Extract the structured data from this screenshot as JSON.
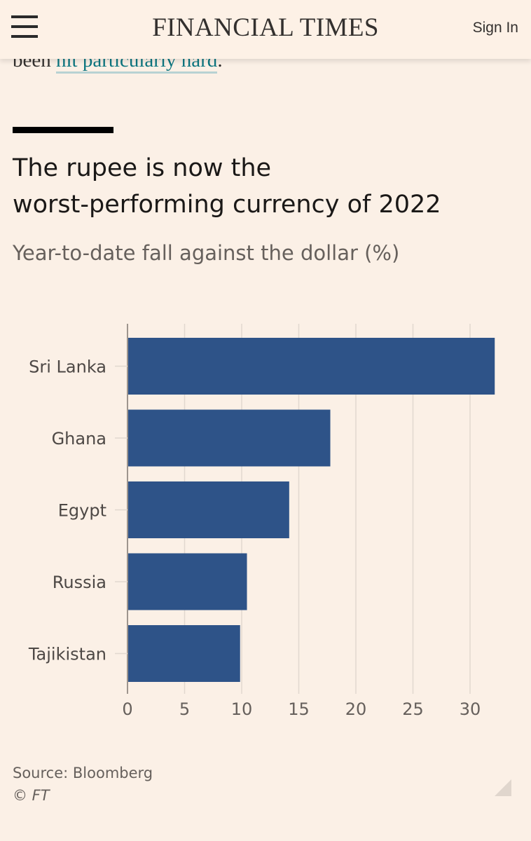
{
  "header": {
    "brand": "FINANCIAL TIMES",
    "signin_label": "Sign In"
  },
  "article": {
    "lead_text": "been ",
    "link_text": "hit particularly hard",
    "trail_text": "."
  },
  "chart_data": {
    "type": "bar",
    "orientation": "horizontal",
    "title_line1": "The rupee is now the",
    "title_line2": "worst-performing currency of 2022",
    "subtitle": "Year-to-date fall against the dollar (%)",
    "categories": [
      "Sri Lanka",
      "Ghana",
      "Egypt",
      "Russia",
      "Tajikistan"
    ],
    "values": [
      32.1,
      17.7,
      14.1,
      10.4,
      9.8
    ],
    "xlim": [
      0,
      32
    ],
    "xticks": [
      0,
      5,
      10,
      15,
      20,
      25,
      30
    ],
    "grid": true,
    "bar_color": "#2e5388",
    "xlabel": "",
    "ylabel": ""
  },
  "footer": {
    "source": "Source: Bloomberg",
    "copyright": "© FT"
  },
  "colors": {
    "background": "#fbf0e6",
    "link": "#0d7680",
    "grid": "#e2d8cf",
    "tick_text": "#66605c"
  }
}
